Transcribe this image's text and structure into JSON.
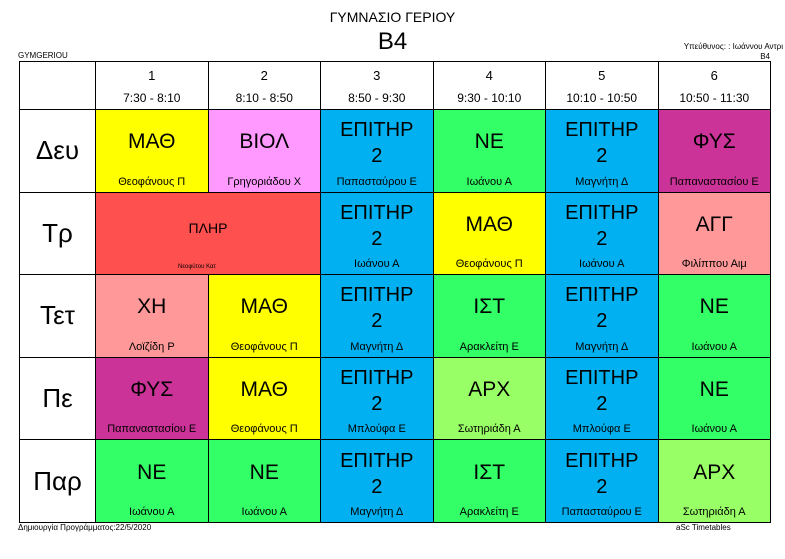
{
  "header": {
    "school": "ΓΥΜΝΑΣΙΟ ΓΕΡΙΟΥ",
    "class": "Β4",
    "code": "GYMGERIOU",
    "responsible": "Υπεύθυνος: : Ιωάννου Αντρι",
    "responsible_class": "Β4"
  },
  "periods": [
    {
      "num": "1",
      "time": "7:30 - 8:10"
    },
    {
      "num": "2",
      "time": "8:10 - 8:50"
    },
    {
      "num": "3",
      "time": "8:50 - 9:30"
    },
    {
      "num": "4",
      "time": "9:30 - 10:10"
    },
    {
      "num": "5",
      "time": "10:10 - 10:50"
    },
    {
      "num": "6",
      "time": "10:50 - 11:30"
    }
  ],
  "days": [
    {
      "name": "Δευ",
      "cells": [
        {
          "subject": "ΜΑΘ",
          "teacher": "Θεοφάνους Π",
          "color": "#ffff00"
        },
        {
          "subject": "ΒΙΟΛ",
          "teacher": "Γρηγοριάδου Χ",
          "color": "#ff99ff"
        },
        {
          "subject": "ΕΠΙΤΗΡ\n2",
          "teacher": "Παπασταύρου Ε",
          "color": "#00b0f0"
        },
        {
          "subject": "ΝΕ",
          "teacher": "Ιωάνου Α",
          "color": "#33ff66"
        },
        {
          "subject": "ΕΠΙΤΗΡ\n2",
          "teacher": "Μαγνήτη Δ",
          "color": "#00b0f0"
        },
        {
          "subject": "ΦΥΣ",
          "teacher": "Παπαναστασίου Ε",
          "color": "#cc3399"
        }
      ]
    },
    {
      "name": "Τρ",
      "cells": [
        {
          "subject": "ΠΛΗΡ",
          "teacher": "Νεοφύτου Κατ",
          "color": "#ff5050",
          "span": 2
        },
        {
          "subject": "ΕΠΙΤΗΡ\n2",
          "teacher": "Ιωάνου Α",
          "color": "#00b0f0"
        },
        {
          "subject": "ΜΑΘ",
          "teacher": "Θεοφάνους Π",
          "color": "#ffff00"
        },
        {
          "subject": "ΕΠΙΤΗΡ\n2",
          "teacher": "Ιωάνου Α",
          "color": "#00b0f0"
        },
        {
          "subject": "ΑΓΓ",
          "teacher": "Φιλίππου Αιμ",
          "color": "#ff9999"
        }
      ]
    },
    {
      "name": "Τετ",
      "cells": [
        {
          "subject": "ΧΗ",
          "teacher": "Λοϊζίδη Ρ",
          "color": "#ff9999"
        },
        {
          "subject": "ΜΑΘ",
          "teacher": "Θεοφάνους Π",
          "color": "#ffff00"
        },
        {
          "subject": "ΕΠΙΤΗΡ\n2",
          "teacher": "Μαγνήτη Δ",
          "color": "#00b0f0"
        },
        {
          "subject": "ΙΣΤ",
          "teacher": "Αρακλείτη Ε",
          "color": "#33ff66"
        },
        {
          "subject": "ΕΠΙΤΗΡ\n2",
          "teacher": "Μαγνήτη Δ",
          "color": "#00b0f0"
        },
        {
          "subject": "ΝΕ",
          "teacher": "Ιωάνου Α",
          "color": "#33ff66"
        }
      ]
    },
    {
      "name": "Πε",
      "cells": [
        {
          "subject": "ΦΥΣ",
          "teacher": "Παπαναστασίου Ε",
          "color": "#cc3399"
        },
        {
          "subject": "ΜΑΘ",
          "teacher": "Θεοφάνους Π",
          "color": "#ffff00"
        },
        {
          "subject": "ΕΠΙΤΗΡ\n2",
          "teacher": "Μπλούφα Ε",
          "color": "#00b0f0"
        },
        {
          "subject": "ΑΡΧ",
          "teacher": "Σωτηριάδη Α",
          "color": "#99ff66"
        },
        {
          "subject": "ΕΠΙΤΗΡ\n2",
          "teacher": "Μπλούφα Ε",
          "color": "#00b0f0"
        },
        {
          "subject": "ΝΕ",
          "teacher": "Ιωάνου Α",
          "color": "#33ff66"
        }
      ]
    },
    {
      "name": "Παρ",
      "cells": [
        {
          "subject": "ΝΕ",
          "teacher": "Ιωάνου Α",
          "color": "#33ff66"
        },
        {
          "subject": "ΝΕ",
          "teacher": "Ιωάνου Α",
          "color": "#33ff66"
        },
        {
          "subject": "ΕΠΙΤΗΡ\n2",
          "teacher": "Μαγνήτη Δ",
          "color": "#00b0f0"
        },
        {
          "subject": "ΙΣΤ",
          "teacher": "Αρακλείτη Ε",
          "color": "#33ff66"
        },
        {
          "subject": "ΕΠΙΤΗΡ\n2",
          "teacher": "Παπασταύρου Ε",
          "color": "#00b0f0"
        },
        {
          "subject": "ΑΡΧ",
          "teacher": "Σωτηριάδη Α",
          "color": "#99ff66"
        }
      ]
    }
  ],
  "footer": {
    "created": "Δημιουργία Προγράμματος:22/5/2020",
    "generator": "aSc Timetables"
  }
}
